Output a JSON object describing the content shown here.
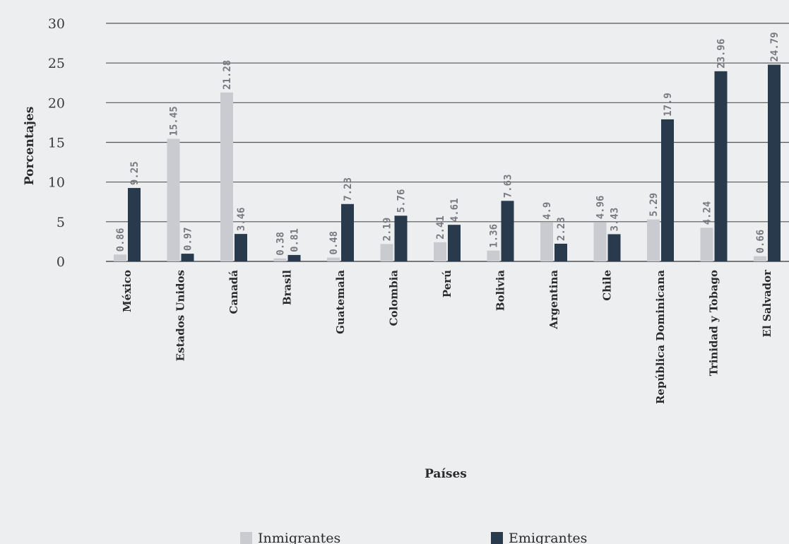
{
  "chart_data": {
    "type": "bar",
    "categories": [
      "México",
      "Estados Unidos",
      "Canadá",
      "Brasil",
      "Guatemala",
      "Colombia",
      "Perú",
      "Bolivia",
      "Argentina",
      "Chile",
      "República Dominicana",
      "Trinidad y Tobago",
      "El Salvador"
    ],
    "series": [
      {
        "name": "Inmigrantes",
        "color": "#c9cbd0",
        "values": [
          0.86,
          15.45,
          21.28,
          0.38,
          0.48,
          2.19,
          2.41,
          1.36,
          4.9,
          4.96,
          5.29,
          4.24,
          0.66
        ]
      },
      {
        "name": "Emigrantes",
        "color": "#283a4c",
        "values": [
          9.25,
          0.97,
          3.46,
          0.81,
          7.23,
          5.76,
          4.61,
          7.63,
          2.23,
          3.43,
          17.9,
          23.96,
          24.79
        ]
      }
    ],
    "data_labels": [
      [
        "0.86",
        "15.45",
        "21.28",
        "0.38",
        "0.48",
        "2.19",
        "2.41",
        "1.36",
        "4.9",
        "4.96",
        "5.29",
        "4.24",
        "0.66"
      ],
      [
        "9.25",
        "0.97",
        "3.46",
        "0.81",
        "7.23",
        "5.76",
        "4.61",
        "7.63",
        "2.23",
        "3.43",
        "17.9",
        "23.96",
        "24.79"
      ]
    ],
    "xlabel": "Países",
    "ylabel": "Porcentajes",
    "ylim": [
      0,
      30
    ],
    "yticks": [
      0,
      5,
      10,
      15,
      20,
      25,
      30
    ],
    "grid": true,
    "legend_position": "bottom"
  }
}
